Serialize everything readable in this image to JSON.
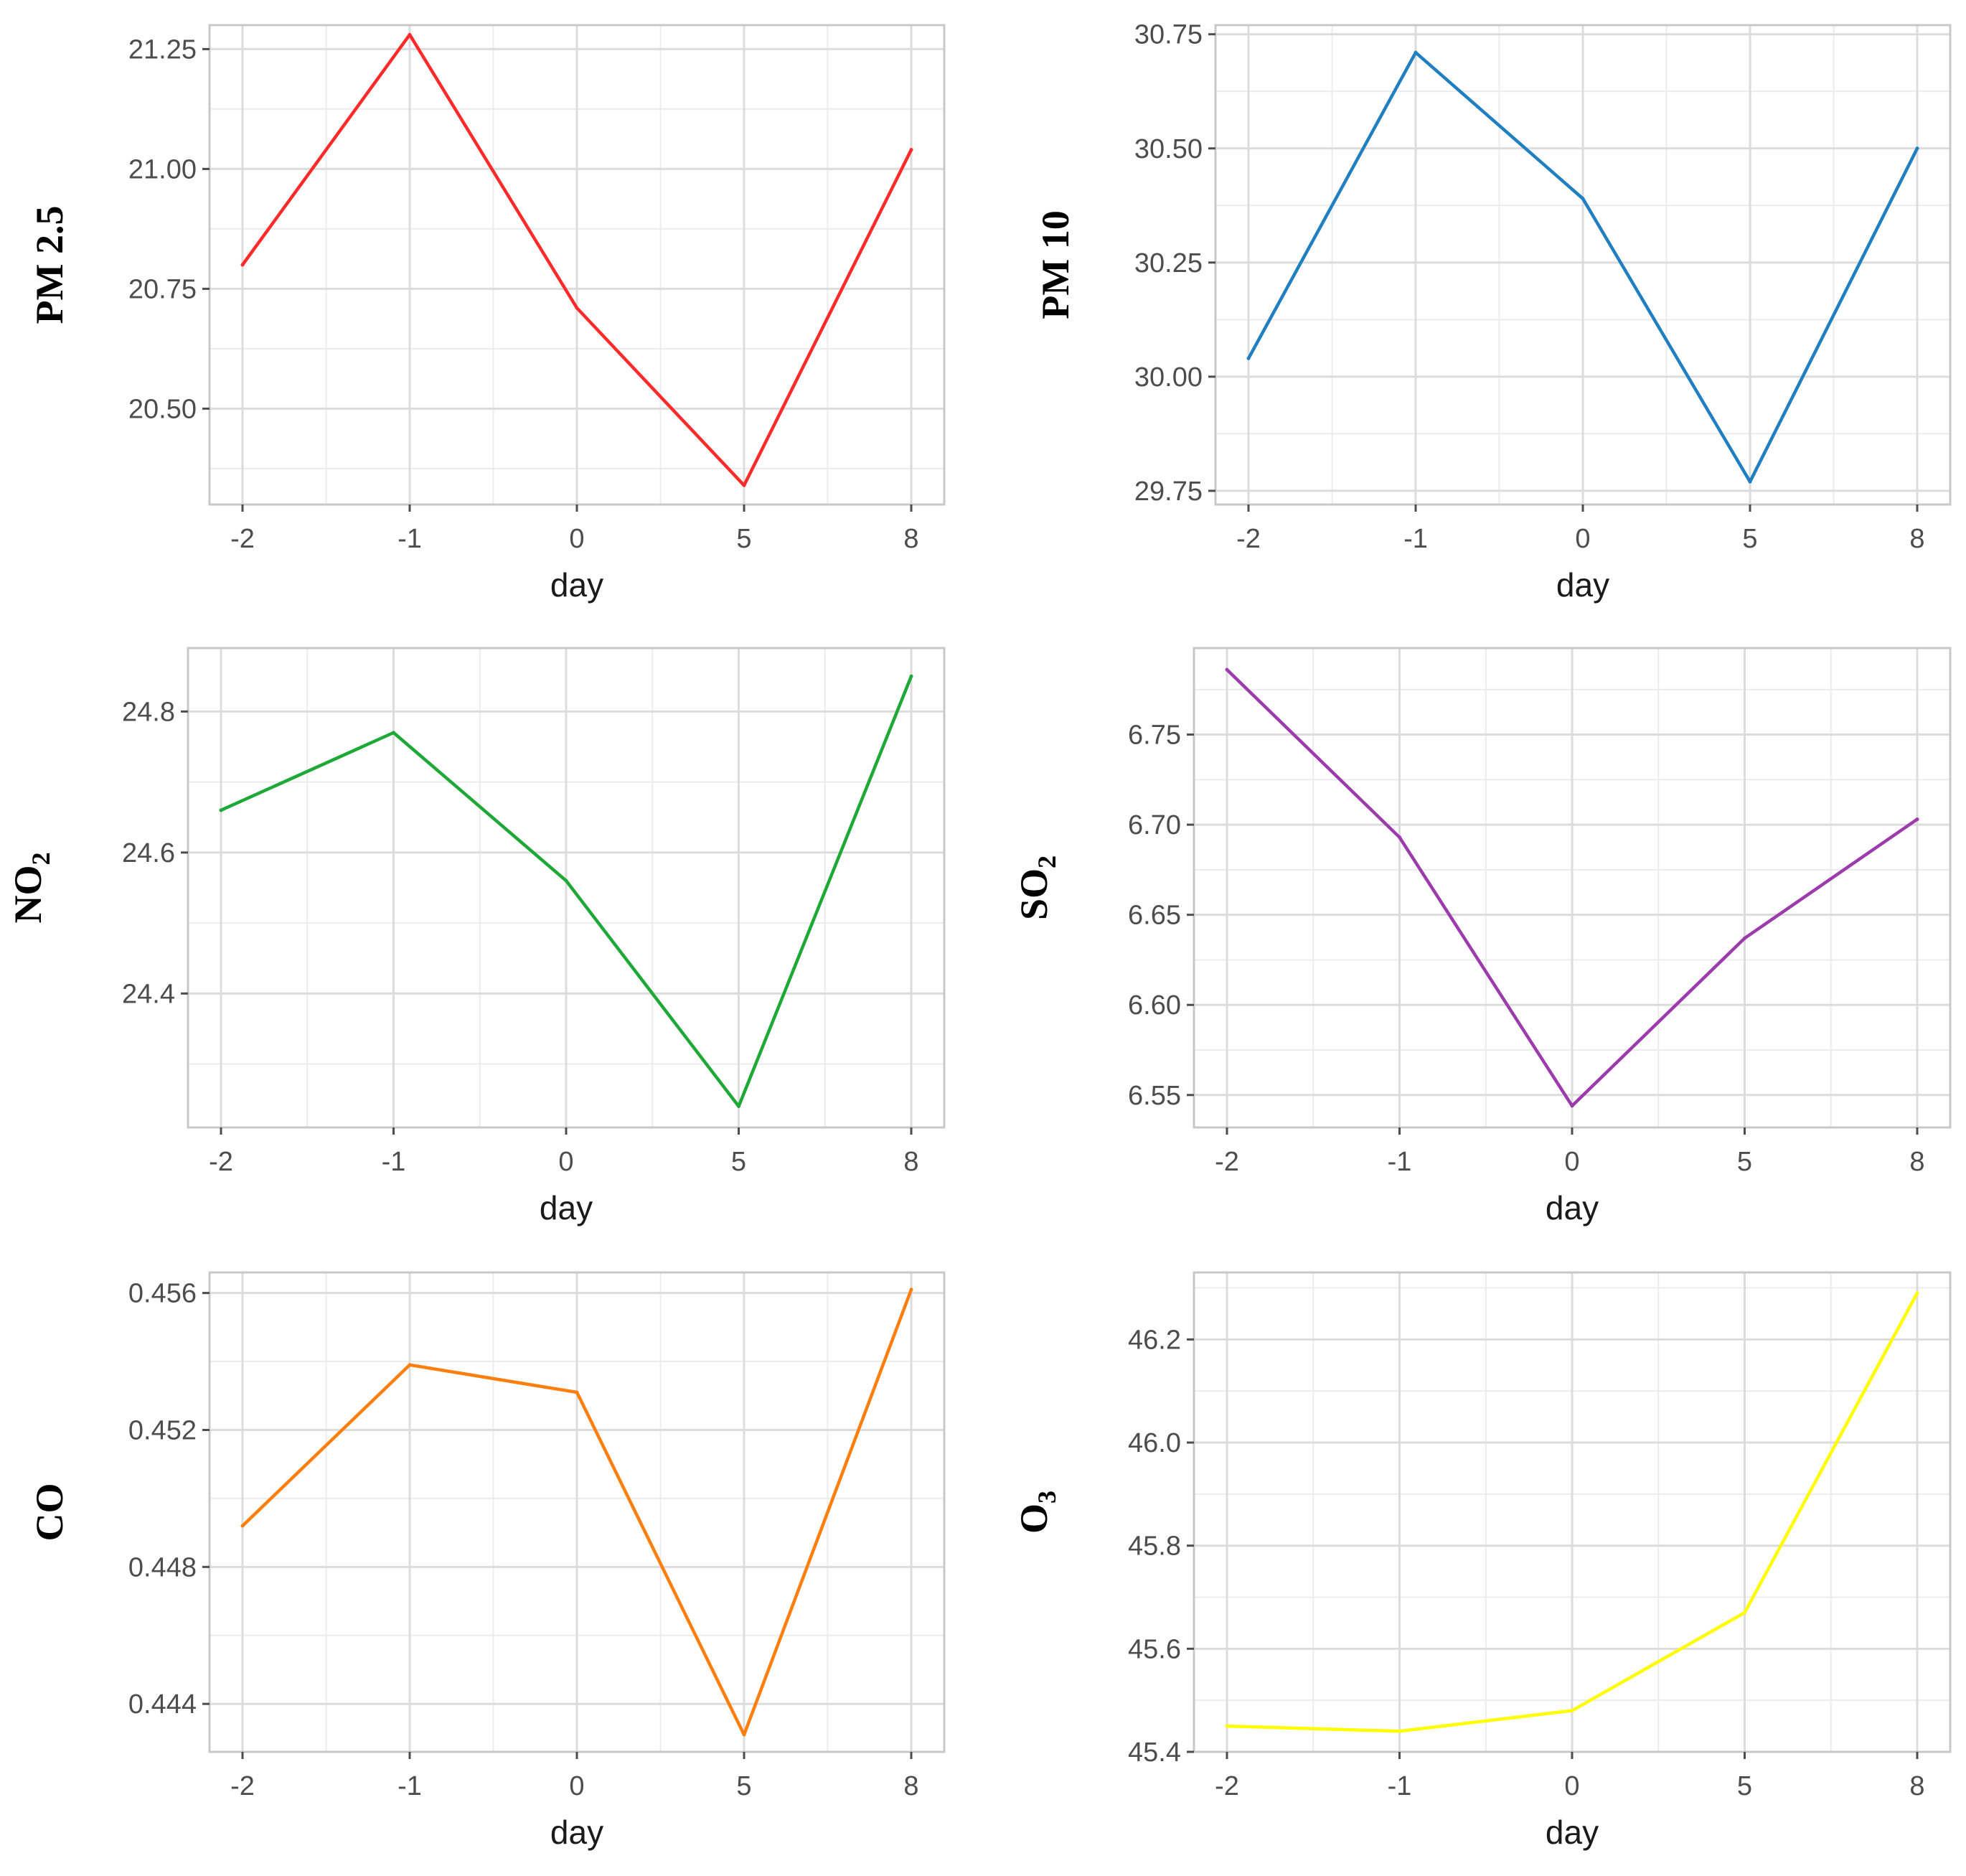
{
  "chart_data": [
    {
      "id": "pm25",
      "type": "line",
      "title": "",
      "ylabel": "PM 2.5",
      "ylabel_sub": "",
      "xlabel": "day",
      "categories": [
        "-2",
        "-1",
        "0",
        "5",
        "8"
      ],
      "values": [
        20.8,
        21.28,
        20.71,
        20.34,
        21.04
      ],
      "ylim": [
        20.3,
        21.3
      ],
      "yticks": [
        "20.50",
        "20.75",
        "21.00",
        "21.25"
      ],
      "yminor": [
        20.375,
        20.625,
        20.875,
        21.125
      ],
      "color": "#ff2a2a",
      "grid": true
    },
    {
      "id": "pm10",
      "type": "line",
      "title": "",
      "ylabel": "PM 10",
      "ylabel_sub": "",
      "xlabel": "day",
      "categories": [
        "-2",
        "-1",
        "0",
        "5",
        "8"
      ],
      "values": [
        30.04,
        30.71,
        30.39,
        29.77,
        30.5
      ],
      "ylim": [
        29.72,
        30.77
      ],
      "yticks": [
        "29.75",
        "30.00",
        "30.25",
        "30.50",
        "30.75"
      ],
      "yminor": [
        29.875,
        30.125,
        30.375,
        30.625
      ],
      "color": "#1f7fc1",
      "grid": true
    },
    {
      "id": "no2",
      "type": "line",
      "title": "",
      "ylabel": "NO",
      "ylabel_sub": "2",
      "xlabel": "day",
      "categories": [
        "-2",
        "-1",
        "0",
        "5",
        "8"
      ],
      "values": [
        24.66,
        24.77,
        24.56,
        24.24,
        24.85
      ],
      "ylim": [
        24.21,
        24.89
      ],
      "yticks": [
        "24.4",
        "24.6",
        "24.8"
      ],
      "yminor": [
        24.3,
        24.5,
        24.7
      ],
      "color": "#1ea838",
      "grid": true
    },
    {
      "id": "so2",
      "type": "line",
      "title": "",
      "ylabel": "SO",
      "ylabel_sub": "2",
      "xlabel": "day",
      "categories": [
        "-2",
        "-1",
        "0",
        "5",
        "8"
      ],
      "values": [
        6.786,
        6.693,
        6.544,
        6.637,
        6.703
      ],
      "ylim": [
        6.532,
        6.798
      ],
      "yticks": [
        "6.55",
        "6.60",
        "6.65",
        "6.70",
        "6.75"
      ],
      "yminor": [
        6.575,
        6.625,
        6.675,
        6.725,
        6.775
      ],
      "color": "#9c3bab",
      "grid": true
    },
    {
      "id": "co",
      "type": "line",
      "title": "",
      "ylabel": "CO",
      "ylabel_sub": "",
      "xlabel": "day",
      "categories": [
        "-2",
        "-1",
        "0",
        "5",
        "8"
      ],
      "values": [
        0.4492,
        0.4539,
        0.4531,
        0.4431,
        0.4561
      ],
      "ylim": [
        0.4426,
        0.4566
      ],
      "yticks": [
        "0.444",
        "0.448",
        "0.452",
        "0.456"
      ],
      "yminor": [
        0.446,
        0.45,
        0.454
      ],
      "color": "#ff7f0e",
      "grid": true
    },
    {
      "id": "o3",
      "type": "line",
      "title": "",
      "ylabel": "O",
      "ylabel_sub": "3",
      "xlabel": "day",
      "categories": [
        "-2",
        "-1",
        "0",
        "5",
        "8"
      ],
      "values": [
        45.45,
        45.44,
        45.48,
        45.67,
        46.29
      ],
      "ylim": [
        45.4,
        46.33
      ],
      "yticks": [
        "45.4",
        "45.6",
        "45.8",
        "46.0",
        "46.2"
      ],
      "yminor": [
        45.5,
        45.7,
        45.9,
        46.1,
        46.3
      ],
      "color": "#ffff00",
      "grid": true
    }
  ]
}
